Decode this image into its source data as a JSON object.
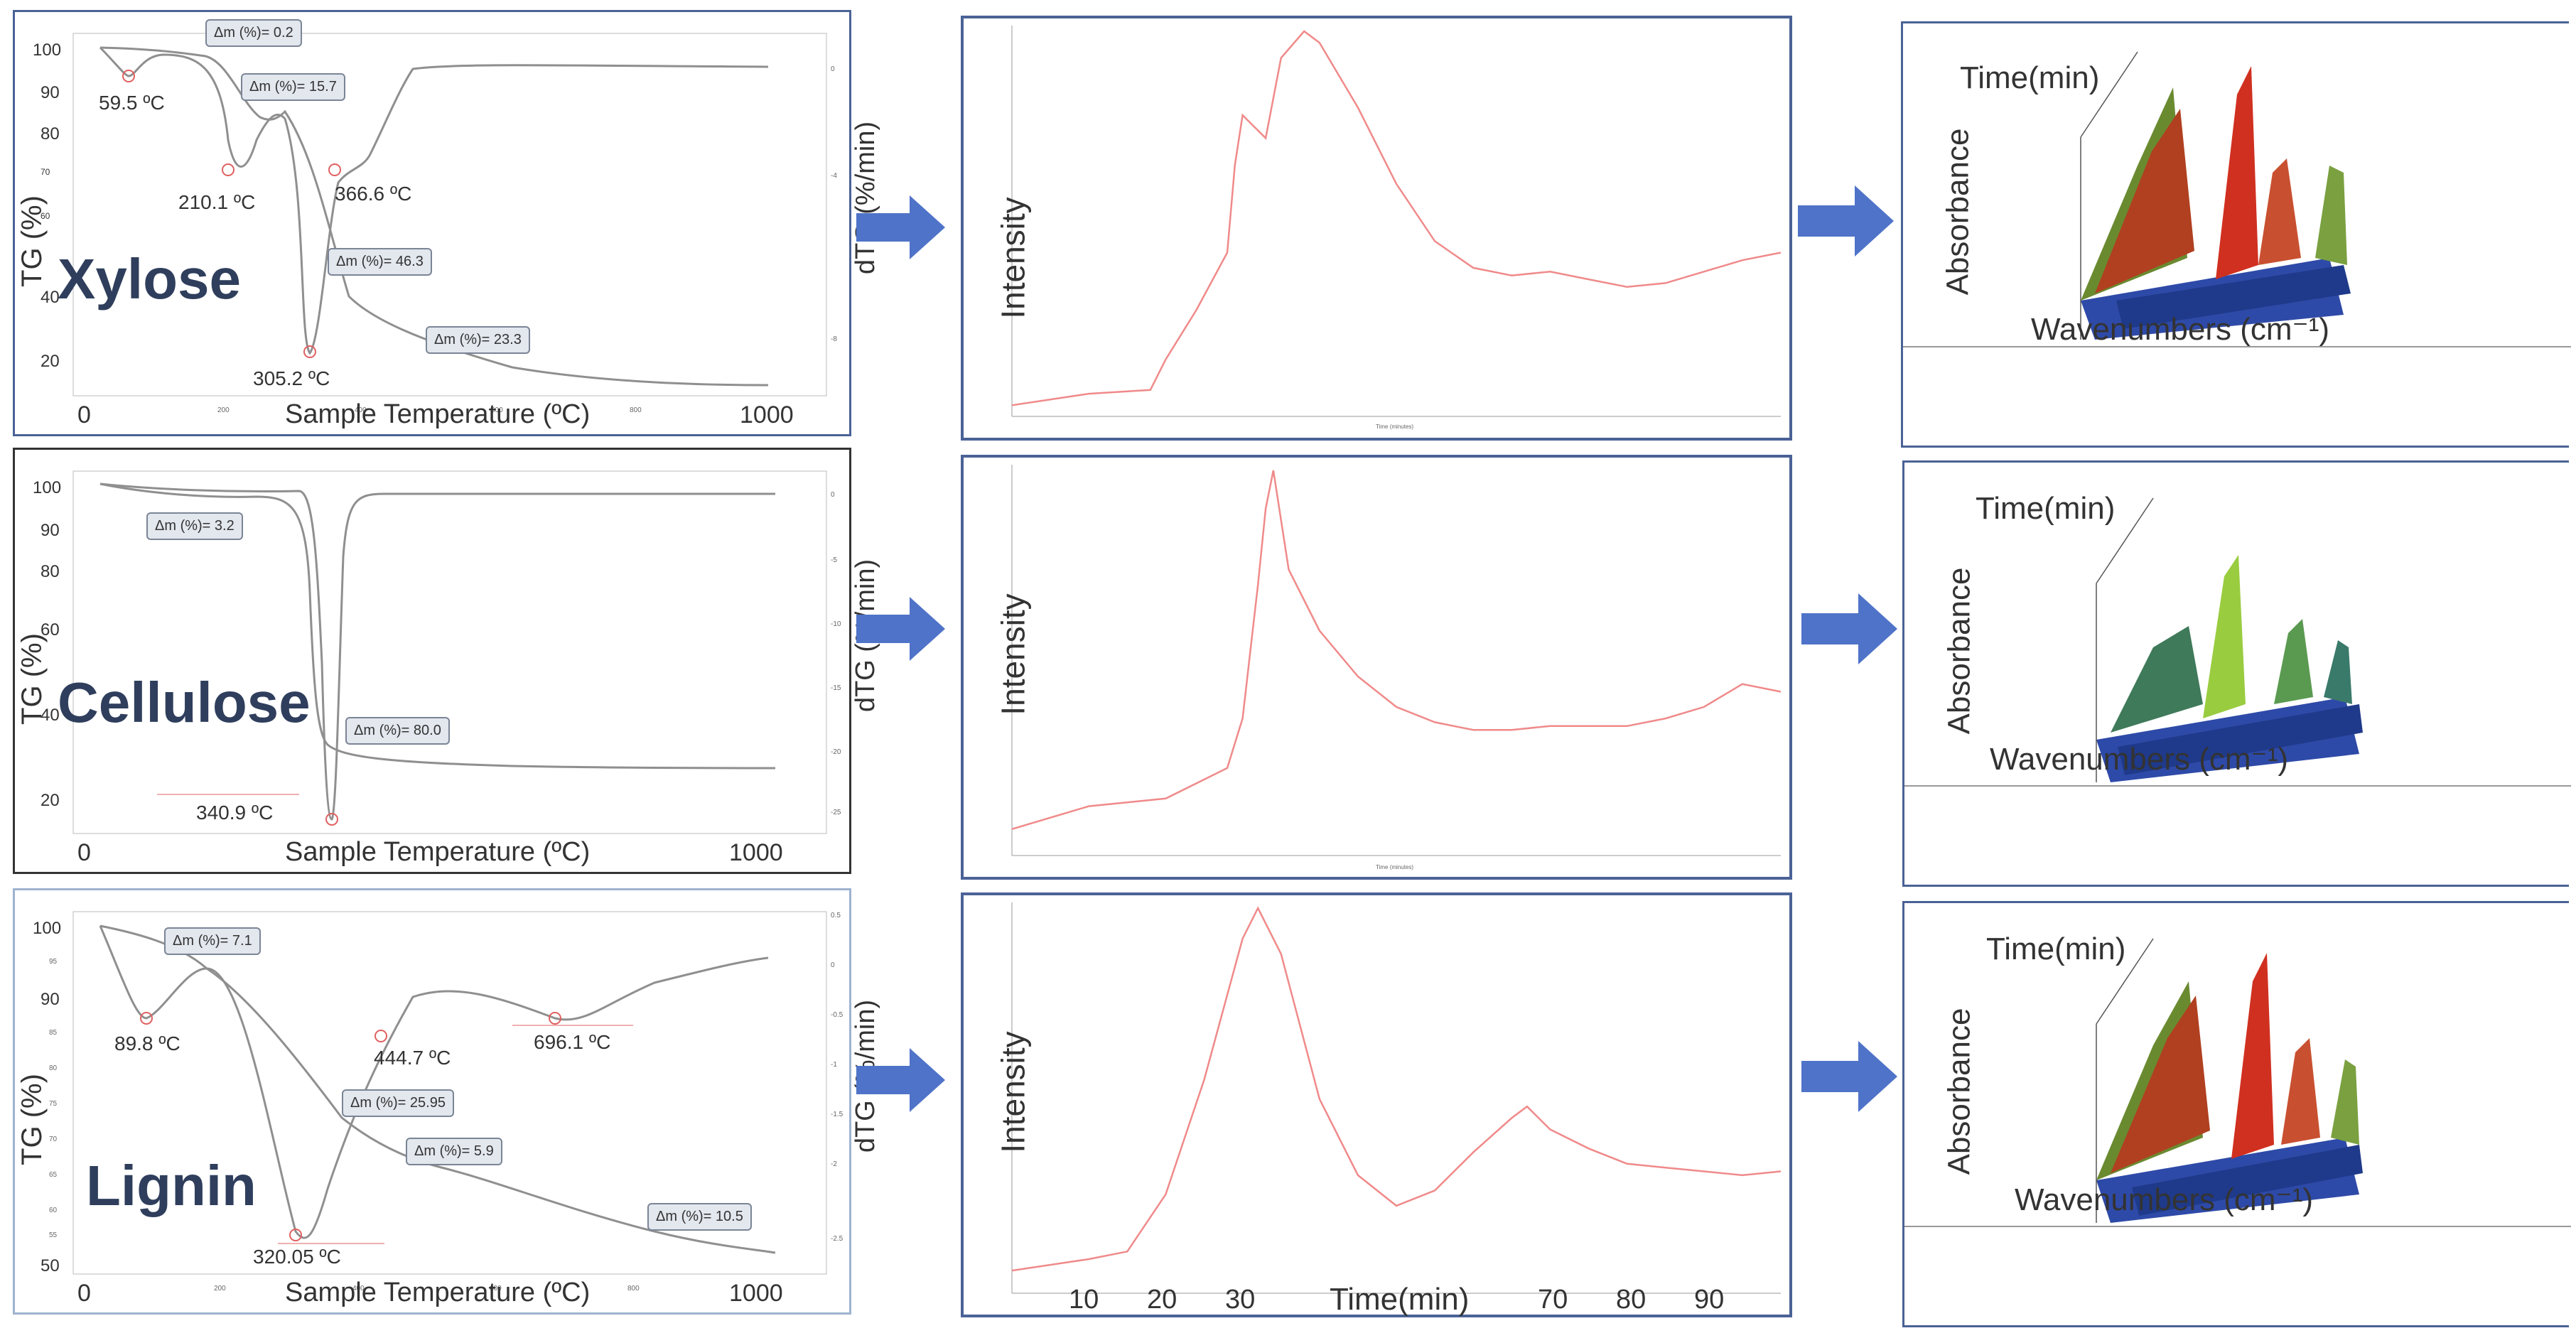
{
  "tga": {
    "xlabel": "Sample Temperature (ºC)",
    "ylabel": "TG (%)",
    "ylabel_right": "dTG (%/min)",
    "panels": [
      {
        "compound": "Xylose",
        "y_ticks": [
          "100",
          "90",
          "80",
          "70",
          "60",
          "40",
          "20"
        ],
        "y_ticks_right": [
          "0",
          "-4",
          "-8"
        ],
        "x_ticks": [
          "0",
          "200",
          "400",
          "600",
          "800",
          "1000"
        ],
        "peaks": [
          "59.5 ºC",
          "210.1 ºC",
          "366.6 ºC",
          "305.2 ºC"
        ],
        "mass_losses": [
          "Δm (%)= 0.2",
          "Δm (%)= 15.7",
          "Δm (%)= 46.3",
          "Δm (%)= 23.3"
        ]
      },
      {
        "compound": "Cellulose",
        "y_ticks": [
          "100",
          "90",
          "80",
          "60",
          "40",
          "20"
        ],
        "y_ticks_right": [
          "0",
          "-5",
          "-10",
          "-15",
          "-20",
          "-25"
        ],
        "x_ticks": [
          "0",
          "1000"
        ],
        "peaks": [
          "340.9 ºC"
        ],
        "mass_losses": [
          "Δm (%)= 3.2",
          "Δm (%)= 80.0"
        ]
      },
      {
        "compound": "Lignin",
        "y_ticks": [
          "100",
          "95",
          "90",
          "85",
          "80",
          "75",
          "70",
          "65",
          "60",
          "55",
          "50"
        ],
        "y_ticks_right": [
          "0.5",
          "0",
          "-0.5",
          "-1",
          "-1.5",
          "-2",
          "-2.5"
        ],
        "x_ticks": [
          "0",
          "200",
          "400",
          "600",
          "800",
          "1000"
        ],
        "peaks": [
          "89.8 ºC",
          "444.7 ºC",
          "696.1 ºC",
          "320.05 ºC"
        ],
        "mass_losses": [
          "Δm (%)= 7.1",
          "Δm (%)= 25.95",
          "Δm (%)= 5.9",
          "Δm (%)= 10.5"
        ]
      }
    ]
  },
  "gram_schmidt": {
    "ylabel": "Intensity",
    "xlabel": "Time(min)",
    "x_ticks": [
      "10",
      "20",
      "30",
      "70",
      "80",
      "90"
    ],
    "small_xlabel": "Time (minutes)"
  },
  "ir3d": {
    "time_label": "Time(min)",
    "absorbance_label": "Absorbance",
    "wavenumber_label": "Wavenumbers (cm⁻¹)"
  },
  "colors": {
    "title_navy": "#2f3e5c",
    "arrow_blue": "#4f73c8",
    "gs_line": "#f08a8a",
    "frame_blue": "#4a6296",
    "tg_curve": "#8f8f8f"
  },
  "chart_data": [
    {
      "type": "line",
      "title": "Xylose",
      "xlabel": "Sample Temperature (ºC)",
      "ylabel": "TG (%)",
      "xlim": [
        0,
        1000
      ],
      "ylim": [
        15,
        105
      ],
      "series": [
        {
          "name": "TG",
          "x": [
            0,
            60,
            150,
            210,
            250,
            305,
            366,
            500,
            700,
            1000
          ],
          "y": [
            100,
            99.8,
            98,
            87,
            84.6,
            55,
            38.3,
            22,
            16.5,
            15
          ]
        },
        {
          "name": "dTG",
          "x": [
            0,
            59.5,
            150,
            210.1,
            260,
            305.2,
            366.6,
            450,
            600,
            1000
          ],
          "y": [
            0,
            -1,
            0,
            -4,
            -2,
            -11,
            -4,
            -1,
            0,
            0
          ]
        }
      ]
    },
    {
      "type": "line",
      "title": "Cellulose",
      "xlabel": "Sample Temperature (ºC)",
      "ylabel": "TG (%)",
      "xlim": [
        0,
        1000
      ],
      "ylim": [
        15,
        105
      ],
      "series": [
        {
          "name": "TG",
          "x": [
            0,
            150,
            300,
            330,
            340.9,
            355,
            400,
            600,
            1000
          ],
          "y": [
            100,
            97,
            96.8,
            80,
            40,
            20,
            17,
            16.8,
            16.8
          ]
        },
        {
          "name": "dTG",
          "x": [
            0,
            300,
            325,
            340.9,
            355,
            380,
            1000
          ],
          "y": [
            0,
            0,
            -8,
            -25,
            -8,
            0,
            0
          ]
        }
      ]
    },
    {
      "type": "line",
      "title": "Lignin",
      "xlabel": "Sample Temperature (ºC)",
      "ylabel": "TG (%)",
      "xlim": [
        0,
        1000
      ],
      "ylim": [
        50,
        100
      ],
      "series": [
        {
          "name": "TG",
          "x": [
            0,
            90,
            170,
            250,
            320,
            400,
            500,
            650,
            800,
            1000
          ],
          "y": [
            100,
            95,
            93,
            88,
            80,
            70,
            65,
            60,
            55,
            51.5
          ]
        },
        {
          "name": "dTG",
          "x": [
            0,
            89.8,
            170,
            250,
            320.05,
            380,
            444.7,
            550,
            696.1,
            850,
            1000
          ],
          "y": [
            0.4,
            -0.5,
            0.1,
            -1.2,
            -2.5,
            -1.2,
            -0.3,
            0.1,
            -0.2,
            0.2,
            0.3
          ]
        }
      ]
    },
    {
      "type": "line",
      "title": "",
      "xlabel": "Time(min)",
      "ylabel": "Intensity",
      "xlim": [
        0,
        100
      ],
      "ylim": [
        0,
        1
      ],
      "series": [
        {
          "name": "Xylose",
          "x": [
            0,
            10,
            18,
            20,
            24,
            28,
            29,
            30,
            31,
            33,
            35,
            38,
            40,
            45,
            50,
            55,
            60,
            65,
            70,
            75,
            80,
            85,
            90,
            95,
            100
          ],
          "y": [
            0.02,
            0.05,
            0.06,
            0.14,
            0.27,
            0.42,
            0.65,
            0.78,
            0.76,
            0.72,
            0.93,
            1.0,
            0.97,
            0.8,
            0.6,
            0.45,
            0.38,
            0.36,
            0.37,
            0.35,
            0.33,
            0.34,
            0.37,
            0.4,
            0.42
          ]
        },
        {
          "name": "Cellulose",
          "x": [
            0,
            10,
            20,
            28,
            30,
            32,
            33,
            34,
            36,
            40,
            45,
            50,
            55,
            60,
            65,
            70,
            75,
            80,
            85,
            90,
            95,
            100
          ],
          "y": [
            0.06,
            0.12,
            0.14,
            0.22,
            0.35,
            0.7,
            0.9,
            1.0,
            0.74,
            0.58,
            0.46,
            0.38,
            0.34,
            0.32,
            0.32,
            0.33,
            0.33,
            0.33,
            0.35,
            0.38,
            0.44,
            0.42
          ]
        },
        {
          "name": "Lignin",
          "x": [
            0,
            10,
            15,
            20,
            25,
            30,
            32,
            35,
            40,
            45,
            50,
            55,
            60,
            65,
            67,
            70,
            75,
            80,
            85,
            90,
            95,
            100
          ],
          "y": [
            0.05,
            0.08,
            0.1,
            0.25,
            0.55,
            0.92,
            1.0,
            0.88,
            0.5,
            0.3,
            0.22,
            0.26,
            0.36,
            0.45,
            0.48,
            0.42,
            0.37,
            0.33,
            0.32,
            0.31,
            0.3,
            0.31
          ]
        }
      ]
    }
  ]
}
